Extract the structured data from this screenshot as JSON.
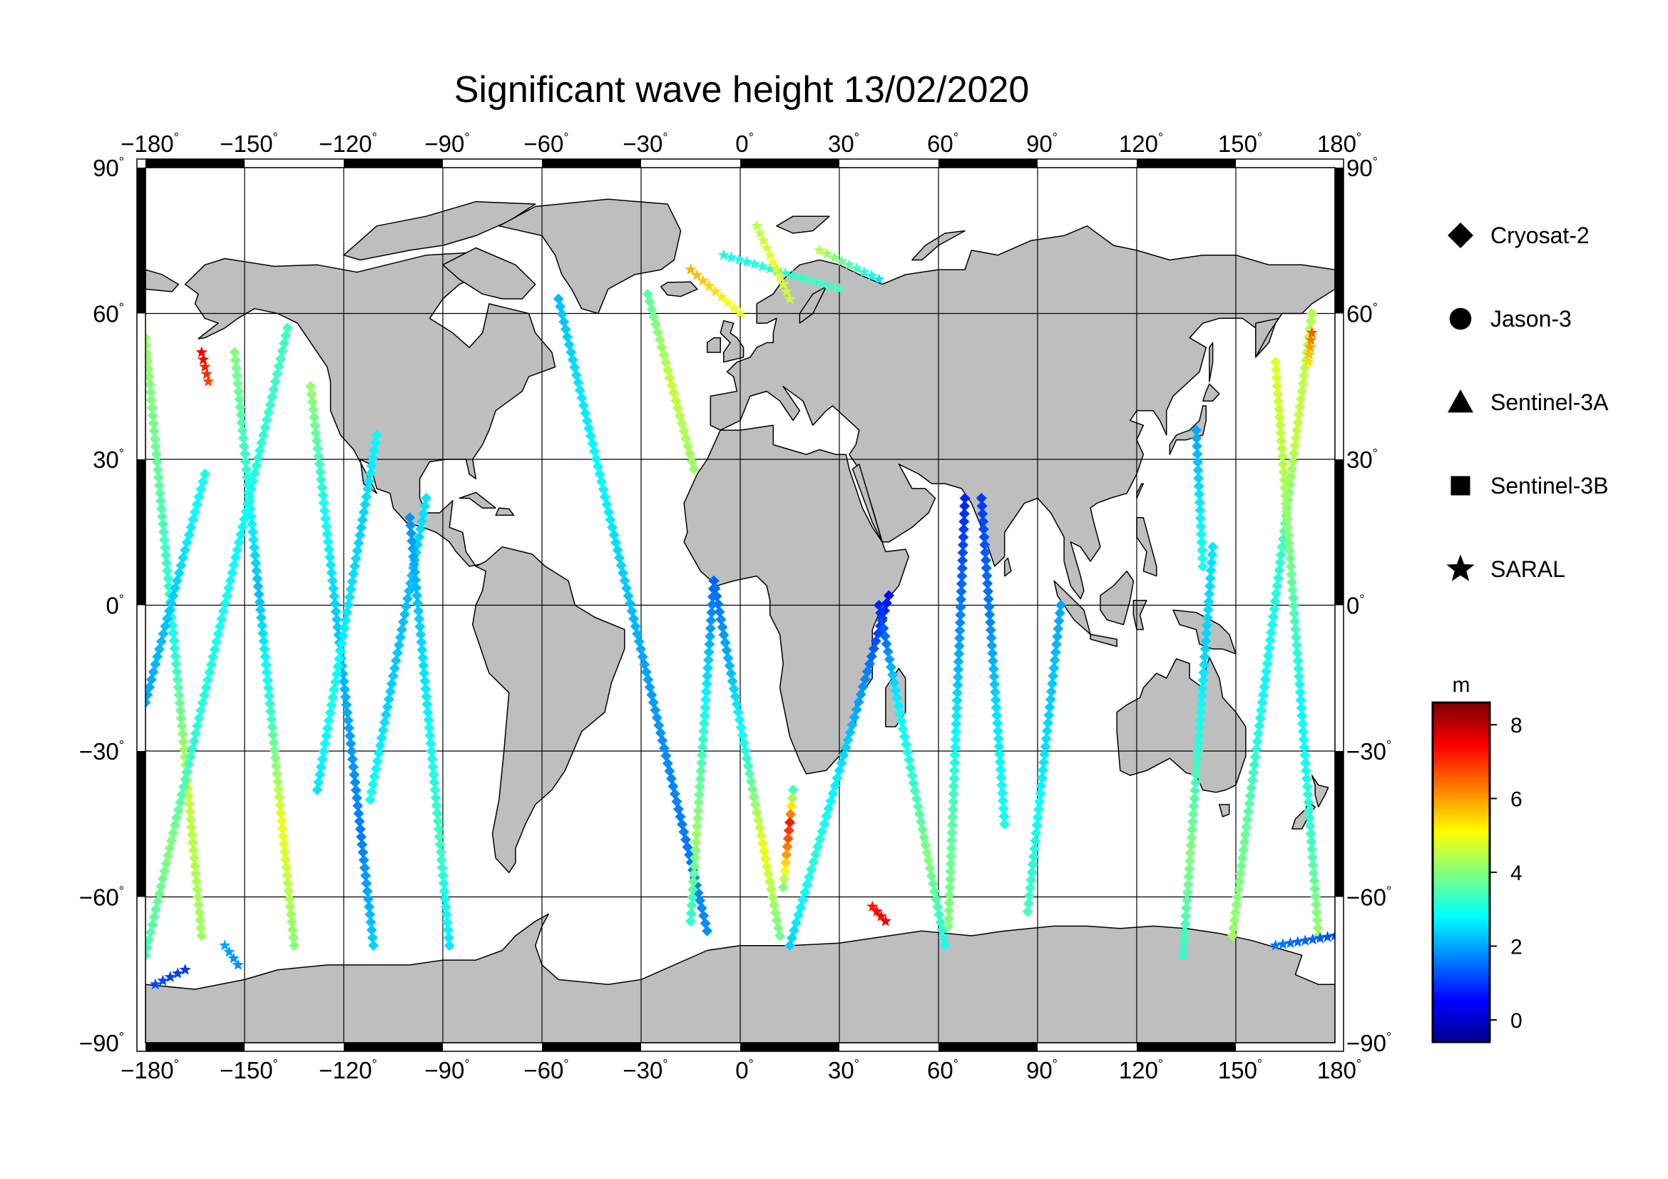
{
  "title": "Significant wave height 13/02/2020",
  "lon_ticks": [
    -180,
    -150,
    -120,
    -90,
    -60,
    -30,
    0,
    30,
    60,
    90,
    120,
    150,
    180
  ],
  "lat_ticks": [
    90,
    60,
    30,
    0,
    -30,
    -60,
    -90
  ],
  "legend": [
    {
      "label": "Cryosat-2",
      "marker": "diamond"
    },
    {
      "label": "Jason-3",
      "marker": "circle"
    },
    {
      "label": "Sentinel-3A",
      "marker": "triangle"
    },
    {
      "label": "Sentinel-3B",
      "marker": "square"
    },
    {
      "label": "SARAL",
      "marker": "star"
    }
  ],
  "colorbar": {
    "unit": "m",
    "ticks": [
      8,
      6,
      4,
      2,
      0
    ],
    "range": [
      -0.6,
      8.6
    ],
    "colormap": [
      "#00008f",
      "#0000ff",
      "#00ffff",
      "#ffff00",
      "#ff0000",
      "#800000"
    ]
  },
  "colors": {
    "land": "#bebebe",
    "ocean": "#ffffff",
    "grid": "#000000"
  },
  "tracks": [
    {
      "satellite": "Cryosat-2",
      "start": [
        -180,
        55
      ],
      "end": [
        -163,
        -68
      ],
      "h": [
        4.2,
        3.6,
        3.0,
        4.6,
        4.2
      ]
    },
    {
      "satellite": "Cryosat-2",
      "start": [
        -153,
        52
      ],
      "end": [
        -135,
        -70
      ],
      "h": [
        4.0,
        3.2,
        2.2,
        3.2,
        5.0,
        4.0
      ]
    },
    {
      "satellite": "Cryosat-2",
      "start": [
        -162,
        27
      ],
      "end": [
        -180,
        -20
      ],
      "h": [
        3.0,
        2.4,
        2.0
      ]
    },
    {
      "satellite": "Cryosat-2",
      "start": [
        -137,
        57
      ],
      "end": [
        -180,
        -72
      ],
      "h": [
        3.4,
        3.2,
        2.8,
        3.0,
        3.2,
        4.0,
        3.4
      ]
    },
    {
      "satellite": "Cryosat-2",
      "start": [
        -130,
        45
      ],
      "end": [
        -111,
        -70
      ],
      "h": [
        4.2,
        3.0,
        2.4,
        2.0,
        1.6,
        2.4
      ]
    },
    {
      "satellite": "Cryosat-2",
      "start": [
        -110,
        35
      ],
      "end": [
        -128,
        -38
      ],
      "h": [
        2.8,
        2.4,
        2.6,
        3.0,
        2.6
      ]
    },
    {
      "satellite": "Cryosat-2",
      "start": [
        -95,
        22
      ],
      "end": [
        -112,
        -40
      ],
      "h": [
        2.6,
        2.2,
        2.4,
        3.0
      ]
    },
    {
      "satellite": "Cryosat-2",
      "start": [
        -100,
        18
      ],
      "end": [
        -88,
        -70
      ],
      "h": [
        1.8,
        2.4,
        2.8,
        3.4,
        2.6
      ]
    },
    {
      "satellite": "Cryosat-2",
      "start": [
        -55,
        63
      ],
      "end": [
        -10,
        -67
      ],
      "h": [
        2.2,
        2.6,
        2.8,
        2.4,
        2.0,
        1.8,
        1.6,
        1.8
      ]
    },
    {
      "satellite": "Cryosat-2",
      "start": [
        -28,
        64
      ],
      "end": [
        -14,
        28
      ],
      "h": [
        3.6,
        4.6,
        4.2
      ]
    },
    {
      "satellite": "Cryosat-2",
      "start": [
        -8,
        5
      ],
      "end": [
        -15,
        -65
      ],
      "h": [
        1.4,
        2.4,
        3.4,
        4.2,
        3.2
      ]
    },
    {
      "satellite": "Cryosat-2",
      "start": [
        -8,
        5
      ],
      "end": [
        12,
        -68
      ],
      "h": [
        1.4,
        2.2,
        3.2,
        5.0,
        3.8
      ]
    },
    {
      "satellite": "Cryosat-2",
      "start": [
        16,
        -38
      ],
      "end": [
        13,
        -58
      ],
      "h": [
        3.4,
        7.2,
        6.0,
        4.0
      ]
    },
    {
      "satellite": "Cryosat-2",
      "start": [
        45,
        2
      ],
      "end": [
        15,
        -70
      ],
      "h": [
        0.6,
        1.8,
        2.6,
        3.2,
        2.4
      ]
    },
    {
      "satellite": "Cryosat-2",
      "start": [
        42,
        0
      ],
      "end": [
        62,
        -70
      ],
      "h": [
        0.8,
        2.6,
        3.2,
        4.0,
        3.0
      ]
    },
    {
      "satellite": "Cryosat-2",
      "start": [
        68,
        22
      ],
      "end": [
        63,
        -66
      ],
      "h": [
        0.8,
        1.6,
        2.6,
        3.6,
        4.0
      ]
    },
    {
      "satellite": "Cryosat-2",
      "start": [
        73,
        22
      ],
      "end": [
        80,
        -45
      ],
      "h": [
        1.0,
        1.6,
        2.6,
        3.0
      ]
    },
    {
      "satellite": "Cryosat-2",
      "start": [
        97,
        0
      ],
      "end": [
        87,
        -63
      ],
      "h": [
        2.0,
        2.6,
        3.4
      ]
    },
    {
      "satellite": "Cryosat-2",
      "start": [
        143,
        12
      ],
      "end": [
        134,
        -72
      ],
      "h": [
        2.6,
        2.4,
        3.2,
        4.0,
        3.2
      ]
    },
    {
      "satellite": "Cryosat-2",
      "start": [
        173,
        60
      ],
      "end": [
        149,
        -68
      ],
      "h": [
        4.4,
        4.6,
        3.2,
        2.8,
        3.6,
        4.2
      ]
    },
    {
      "satellite": "Cryosat-2",
      "start": [
        162,
        50
      ],
      "end": [
        175,
        -68
      ],
      "h": [
        4.8,
        4.4,
        3.6,
        2.8,
        3.2,
        4.2
      ]
    },
    {
      "satellite": "Cryosat-2",
      "start": [
        138,
        36
      ],
      "end": [
        140,
        8
      ],
      "h": [
        2.0,
        2.6,
        3.0
      ]
    },
    {
      "satellite": "SARAL",
      "start": [
        -177,
        -78
      ],
      "end": [
        -168,
        -75
      ],
      "h": [
        1.2,
        1.0
      ]
    },
    {
      "satellite": "SARAL",
      "start": [
        -152,
        -74
      ],
      "end": [
        -156,
        -70
      ],
      "h": [
        1.8,
        2.0
      ]
    },
    {
      "satellite": "SARAL",
      "start": [
        -163,
        52
      ],
      "end": [
        -161,
        46
      ],
      "h": [
        7.6,
        6.8
      ]
    },
    {
      "satellite": "SARAL",
      "start": [
        -15,
        69
      ],
      "end": [
        0,
        60
      ],
      "h": [
        5.8,
        5.4,
        4.8
      ]
    },
    {
      "satellite": "SARAL",
      "start": [
        -5,
        72
      ],
      "end": [
        30,
        65
      ],
      "h": [
        3.0,
        3.2,
        3.4
      ]
    },
    {
      "satellite": "SARAL",
      "start": [
        5,
        78
      ],
      "end": [
        15,
        63
      ],
      "h": [
        4.4,
        5.0,
        4.6
      ]
    },
    {
      "satellite": "SARAL",
      "start": [
        24,
        73
      ],
      "end": [
        42,
        67
      ],
      "h": [
        4.4,
        3.6,
        2.6
      ]
    },
    {
      "satellite": "SARAL",
      "start": [
        162,
        -70
      ],
      "end": [
        180,
        -68
      ],
      "h": [
        1.6,
        1.4,
        1.2
      ]
    },
    {
      "satellite": "SARAL",
      "start": [
        173,
        56
      ],
      "end": [
        172,
        50
      ],
      "h": [
        6.6,
        5.4
      ]
    },
    {
      "satellite": "SARAL",
      "start": [
        40,
        -62
      ],
      "end": [
        44,
        -65
      ],
      "h": [
        7.2,
        7.6
      ]
    }
  ]
}
